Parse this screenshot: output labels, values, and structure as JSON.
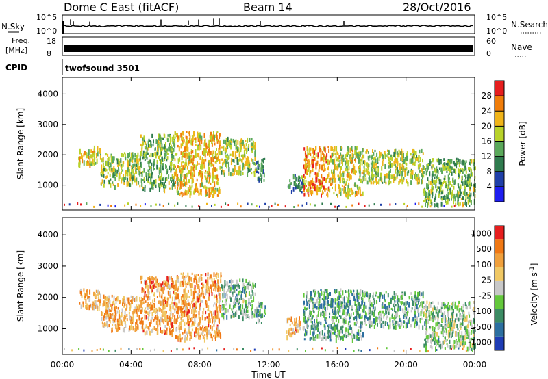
{
  "header": {
    "title": "Dome C East (fitACF)",
    "beam": "Beam 14",
    "date": "28/Oct/2016"
  },
  "panels": {
    "nsky": {
      "label": "N.Sky",
      "tick_hi": "10^5",
      "tick_lo": "10^0"
    },
    "freq": {
      "label_top": "Freq.",
      "label_unit": "[MHz]",
      "tick_hi": "18",
      "tick_lo": "8"
    },
    "nsearch": {
      "label": "N.Search",
      "tick_hi": "10^5",
      "tick_lo": "10^0"
    },
    "nave": {
      "label": "Nave",
      "tick_hi": "60",
      "tick_lo": "0"
    },
    "cpid": {
      "label": "CPID",
      "value": "twofsound 3501"
    }
  },
  "chart_data": [
    {
      "type": "heatmap",
      "name": "power",
      "title": "",
      "xlabel": "Time UT",
      "ylabel": "Slant Range [km]",
      "xlim": [
        0,
        24
      ],
      "ylim": [
        180,
        4550
      ],
      "x_ticks": [
        "00:00",
        "04:00",
        "08:00",
        "12:00",
        "16:00",
        "20:00",
        "00:00"
      ],
      "x_tick_values": [
        0,
        4,
        8,
        12,
        16,
        20,
        24
      ],
      "y_ticks": [
        1000,
        2000,
        3000,
        4000
      ],
      "colorbar": {
        "label": "Power [dB]",
        "ticks": [
          "4",
          "8",
          "12",
          "16",
          "20",
          "24",
          "28"
        ],
        "colors": [
          "#1e1ef0",
          "#1f3fa8",
          "#2f7b4e",
          "#5aa85a",
          "#b8d22a",
          "#f0b419",
          "#f07d0a",
          "#e61e1e"
        ]
      },
      "scatter_regions": [
        {
          "t0": 0.9,
          "t1": 2.2,
          "r0": 1700,
          "r1": 2300,
          "level": 0.65
        },
        {
          "t0": 2.2,
          "t1": 4.5,
          "r0": 1000,
          "r1": 2100,
          "level": 0.55
        },
        {
          "t0": 4.5,
          "t1": 6.5,
          "r0": 900,
          "r1": 2700,
          "level": 0.45
        },
        {
          "t0": 6.5,
          "t1": 9.2,
          "r0": 700,
          "r1": 2800,
          "level": 0.7
        },
        {
          "t0": 9.2,
          "t1": 11.2,
          "r0": 1400,
          "r1": 2600,
          "level": 0.55
        },
        {
          "t0": 11.2,
          "t1": 11.8,
          "r0": 1200,
          "r1": 1900,
          "level": 0.3
        },
        {
          "t0": 13.0,
          "t1": 14.0,
          "r0": 800,
          "r1": 1400,
          "level": 0.3
        },
        {
          "t0": 14.0,
          "t1": 15.6,
          "r0": 700,
          "r1": 2300,
          "level": 0.8
        },
        {
          "t0": 15.6,
          "t1": 17.5,
          "r0": 700,
          "r1": 2300,
          "level": 0.6
        },
        {
          "t0": 17.5,
          "t1": 21.0,
          "r0": 1100,
          "r1": 2200,
          "level": 0.55
        },
        {
          "t0": 21.0,
          "t1": 24.0,
          "r0": 400,
          "r1": 1900,
          "level": 0.45
        }
      ]
    },
    {
      "type": "heatmap",
      "name": "velocity",
      "title": "",
      "xlabel": "Time UT",
      "ylabel": "Slant Range [km]",
      "xlim": [
        0,
        24
      ],
      "ylim": [
        180,
        4550
      ],
      "x_ticks": [
        "00:00",
        "04:00",
        "08:00",
        "12:00",
        "16:00",
        "20:00",
        "00:00"
      ],
      "x_tick_values": [
        0,
        4,
        8,
        12,
        16,
        20,
        24
      ],
      "y_ticks": [
        1000,
        2000,
        3000,
        4000
      ],
      "colorbar": {
        "label": "Velocity [m s^-1]",
        "ticks": [
          "1000",
          "500",
          "100",
          "25",
          "-25",
          "-100",
          "-500",
          "-1000"
        ],
        "colors": [
          "#1e3cb4",
          "#2c6fa0",
          "#3c8c64",
          "#64c83c",
          "#c8c8c8",
          "#f0c864",
          "#f0a03c",
          "#f07814",
          "#e61e1e"
        ]
      },
      "scatter_regions": [
        {
          "t0": 0.9,
          "t1": 2.2,
          "r0": 1700,
          "r1": 2300,
          "level": 0.7
        },
        {
          "t0": 2.2,
          "t1": 4.5,
          "r0": 1000,
          "r1": 2100,
          "level": 0.72
        },
        {
          "t0": 4.5,
          "t1": 6.5,
          "r0": 900,
          "r1": 2700,
          "level": 0.75
        },
        {
          "t0": 6.5,
          "t1": 9.2,
          "r0": 700,
          "r1": 2800,
          "level": 0.75
        },
        {
          "t0": 9.2,
          "t1": 11.2,
          "r0": 1400,
          "r1": 2600,
          "level": 0.35
        },
        {
          "t0": 11.2,
          "t1": 11.8,
          "r0": 1200,
          "r1": 1900,
          "level": 0.3
        },
        {
          "t0": 13.0,
          "t1": 14.0,
          "r0": 800,
          "r1": 1400,
          "level": 0.72
        },
        {
          "t0": 14.0,
          "t1": 15.6,
          "r0": 700,
          "r1": 2300,
          "level": 0.3
        },
        {
          "t0": 15.6,
          "t1": 17.5,
          "r0": 700,
          "r1": 2300,
          "level": 0.3
        },
        {
          "t0": 17.5,
          "t1": 21.0,
          "r0": 1100,
          "r1": 2200,
          "level": 0.32
        },
        {
          "t0": 21.0,
          "t1": 24.0,
          "r0": 400,
          "r1": 1900,
          "level": 0.4
        }
      ]
    }
  ]
}
